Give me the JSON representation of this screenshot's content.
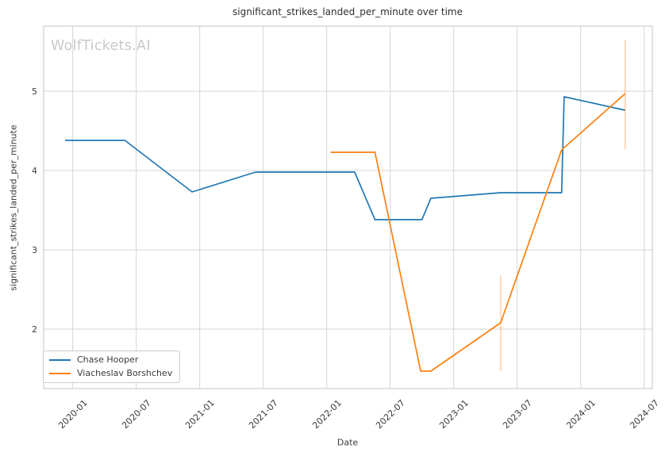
{
  "title": "significant_strikes_landed_per_minute over time",
  "watermark": "WolfTickets.AI",
  "colors": {
    "series_blue": "#1f77b4",
    "series_orange": "#ff7f0e",
    "grid": "#d5d5d5",
    "spine": "#c6c6c6",
    "tick_text": "#3a3a3a",
    "title_text": "#2e2e2e",
    "watermark_text": "#c9c9c9",
    "background": "#ffffff"
  },
  "chart_data": {
    "type": "line",
    "title": "significant_strikes_landed_per_minute over time",
    "xlabel": "Date",
    "ylabel": "significant_strikes_landed_per_minute",
    "grid": true,
    "legend_position": "lower left",
    "xlim": [
      2019.771,
      2024.564
    ],
    "ylim": [
      1.25,
      5.82
    ],
    "x_ticks": [
      {
        "x": 2020.0,
        "label": "2020-01"
      },
      {
        "x": 2020.5,
        "label": "2020-07"
      },
      {
        "x": 2021.0,
        "label": "2021-01"
      },
      {
        "x": 2021.5,
        "label": "2021-07"
      },
      {
        "x": 2022.0,
        "label": "2022-01"
      },
      {
        "x": 2022.5,
        "label": "2022-07"
      },
      {
        "x": 2023.0,
        "label": "2023-01"
      },
      {
        "x": 2023.5,
        "label": "2023-07"
      },
      {
        "x": 2024.0,
        "label": "2024-01"
      },
      {
        "x": 2024.5,
        "label": "2024-07"
      }
    ],
    "y_ticks": [
      {
        "y": 2,
        "label": "2"
      },
      {
        "y": 3,
        "label": "3"
      },
      {
        "y": 4,
        "label": "4"
      },
      {
        "y": 5,
        "label": "5"
      }
    ],
    "series": [
      {
        "name": "Chase Hooper",
        "color": "#1f77b4",
        "points": [
          {
            "date": "2019-12",
            "x": 2019.94,
            "y": 4.38
          },
          {
            "date": "2020-06",
            "x": 2020.41,
            "y": 4.38
          },
          {
            "date": "2020-12",
            "x": 2020.94,
            "y": 3.73
          },
          {
            "date": "2021-06",
            "x": 2021.44,
            "y": 3.98
          },
          {
            "date": "2022-03",
            "x": 2022.22,
            "y": 3.98
          },
          {
            "date": "2022-05",
            "x": 2022.38,
            "y": 3.38
          },
          {
            "date": "2022-10",
            "x": 2022.75,
            "y": 3.38
          },
          {
            "date": "2022-11",
            "x": 2022.82,
            "y": 3.65
          },
          {
            "date": "2023-05",
            "x": 2023.37,
            "y": 3.72
          },
          {
            "date": "2023-11",
            "x": 2023.85,
            "y": 3.72
          },
          {
            "date": "2023-11",
            "x": 2023.87,
            "y": 4.93
          },
          {
            "date": "2024-05",
            "x": 2024.35,
            "y": 4.76
          }
        ],
        "error_bars": []
      },
      {
        "name": "Viacheslav Borshchev",
        "color": "#ff7f0e",
        "points": [
          {
            "date": "2022-01",
            "x": 2022.03,
            "y": 4.23
          },
          {
            "date": "2022-05",
            "x": 2022.38,
            "y": 4.23
          },
          {
            "date": "2022-10",
            "x": 2022.74,
            "y": 1.47
          },
          {
            "date": "2022-11",
            "x": 2022.82,
            "y": 1.47
          },
          {
            "date": "2023-05",
            "x": 2023.37,
            "y": 2.08
          },
          {
            "date": "2023-11",
            "x": 2023.85,
            "y": 4.26
          },
          {
            "date": "2024-05",
            "x": 2024.35,
            "y": 4.97
          }
        ],
        "error_bars": [
          {
            "date": "2023-05",
            "x": 2023.37,
            "low": 1.47,
            "high": 2.68
          },
          {
            "date": "2024-05",
            "x": 2024.35,
            "low": 4.27,
            "high": 5.65
          }
        ]
      }
    ]
  }
}
